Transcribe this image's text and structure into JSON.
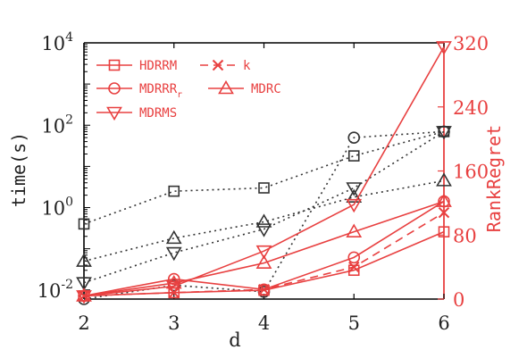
{
  "chart_data": {
    "type": "line",
    "xlabel": "d",
    "ylabel_left": "time(s)",
    "ylabel_right": "RankRegret",
    "x": [
      2,
      3,
      4,
      5,
      6
    ],
    "x_ticks": [
      "2",
      "3",
      "4",
      "5",
      "6"
    ],
    "y_left_scale": "log",
    "y_left_range": [
      0.006,
      10000
    ],
    "y_left_ticks": [
      {
        "value": 0.01,
        "base": "10",
        "exp": "-2"
      },
      {
        "value": 1,
        "base": "10",
        "exp": "0"
      },
      {
        "value": 100,
        "base": "10",
        "exp": "2"
      },
      {
        "value": 10000,
        "base": "10",
        "exp": "4"
      }
    ],
    "y_right_range": [
      0,
      320
    ],
    "y_right_ticks": [
      "0",
      "80",
      "160",
      "240",
      "320"
    ],
    "legend_position": "top-left",
    "grid": false,
    "colors": {
      "time": "#333333",
      "regret": "#e84040",
      "axis_right": "#e84040"
    },
    "legend": [
      {
        "label": "HDRRM",
        "marker": "square"
      },
      {
        "label": "k",
        "marker": "x"
      },
      {
        "label": "MDRRR",
        "subscript": "r",
        "marker": "circle"
      },
      {
        "label": "MDRC",
        "marker": "triangle-up"
      },
      {
        "label": "MDRMS",
        "marker": "triangle-down"
      }
    ],
    "time_series": [
      {
        "name": "HDRRM",
        "marker": "square",
        "values": [
          0.4,
          2.5,
          3.0,
          18,
          70
        ]
      },
      {
        "name": "MDRRR_r",
        "marker": "circle",
        "values": [
          0.006,
          0.013,
          0.009,
          50,
          70
        ]
      },
      {
        "name": "MDRC",
        "marker": "triangle-up",
        "values": [
          0.05,
          0.18,
          0.45,
          1.8,
          4.5
        ]
      },
      {
        "name": "MDRMS",
        "marker": "triangle-down",
        "values": [
          0.015,
          0.08,
          0.3,
          3.0,
          70
        ]
      }
    ],
    "regret_series": [
      {
        "name": "HDRRM",
        "marker": "square",
        "values": [
          4,
          8,
          11,
          36,
          84
        ]
      },
      {
        "name": "k",
        "marker": "x",
        "dashed": true,
        "values": [
          4,
          8,
          12,
          40,
          108
        ]
      },
      {
        "name": "MDRRR_r",
        "marker": "circle",
        "values": [
          4,
          25,
          12,
          52,
          122
        ]
      },
      {
        "name": "MDRC",
        "marker": "triangle-up",
        "values": [
          4,
          20,
          45,
          84,
          122
        ]
      },
      {
        "name": "MDRMS",
        "marker": "triangle-down",
        "values": [
          4,
          16,
          60,
          118,
          315
        ]
      }
    ]
  }
}
